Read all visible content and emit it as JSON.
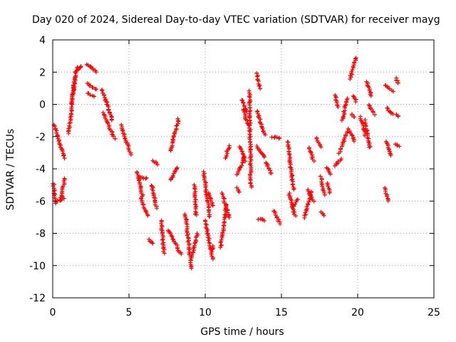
{
  "chart_data": {
    "type": "scatter",
    "title": "Day 020 of 2024, Sidereal Day-to-day VTEC variation (SDTVAR) for receiver mayg",
    "xlabel": "GPS time / hours",
    "ylabel": "SDTVAR / TECUs",
    "xlim": [
      0,
      25
    ],
    "ylim": [
      -12,
      4
    ],
    "xticks": [
      0,
      5,
      10,
      15,
      20,
      25
    ],
    "yticks": [
      4,
      2,
      0,
      -2,
      -4,
      -6,
      -8,
      -10,
      -12
    ],
    "grid": true,
    "marker": "+",
    "color": "#ff0000",
    "segments": [
      {
        "x0": 0.05,
        "x1": 0.15,
        "y0": -4.9,
        "y1": -6.0
      },
      {
        "x0": 0.15,
        "x1": 0.7,
        "y0": -6.1,
        "y1": -5.8
      },
      {
        "x0": 0.5,
        "x1": 0.8,
        "y0": -6.0,
        "y1": -4.6
      },
      {
        "x0": 0.1,
        "x1": 0.75,
        "y0": -1.3,
        "y1": -3.3
      },
      {
        "x0": 1.05,
        "x1": 1.45,
        "y0": -1.8,
        "y1": 1.7
      },
      {
        "x0": 1.2,
        "x1": 1.6,
        "y0": 0.0,
        "y1": 2.3
      },
      {
        "x0": 1.5,
        "x1": 1.9,
        "y0": 2.0,
        "y1": 2.4
      },
      {
        "x0": 2.25,
        "x1": 2.85,
        "y0": 2.5,
        "y1": 2.0
      },
      {
        "x0": 2.25,
        "x1": 2.85,
        "y0": 1.3,
        "y1": 0.9
      },
      {
        "x0": 2.3,
        "x1": 2.7,
        "y0": 0.7,
        "y1": 0.5
      },
      {
        "x0": 3.25,
        "x1": 3.9,
        "y0": 0.9,
        "y1": -1.0
      },
      {
        "x0": 3.3,
        "x1": 4.05,
        "y0": -0.5,
        "y1": -2.1
      },
      {
        "x0": 4.5,
        "x1": 5.1,
        "y0": -1.3,
        "y1": -3.1
      },
      {
        "x0": 5.5,
        "x1": 5.9,
        "y0": -4.2,
        "y1": -5.7
      },
      {
        "x0": 5.7,
        "x1": 6.2,
        "y0": -4.5,
        "y1": -4.6
      },
      {
        "x0": 5.8,
        "x1": 6.2,
        "y0": -5.8,
        "y1": -6.9
      },
      {
        "x0": 6.3,
        "x1": 6.6,
        "y0": -8.4,
        "y1": -8.6
      },
      {
        "x0": 6.5,
        "x1": 6.8,
        "y0": -5.0,
        "y1": -6.4
      },
      {
        "x0": 6.6,
        "x1": 6.9,
        "y0": -3.5,
        "y1": -3.7
      },
      {
        "x0": 7.1,
        "x1": 7.3,
        "y0": -7.2,
        "y1": -9.2
      },
      {
        "x0": 7.7,
        "x1": 8.25,
        "y0": -2.9,
        "y1": -0.9
      },
      {
        "x0": 7.7,
        "x1": 8.2,
        "y0": -4.7,
        "y1": -3.9
      },
      {
        "x0": 7.6,
        "x1": 8.4,
        "y0": -7.8,
        "y1": -9.3
      },
      {
        "x0": 8.7,
        "x1": 9.1,
        "y0": -6.8,
        "y1": -10.2
      },
      {
        "x0": 9.1,
        "x1": 9.5,
        "y0": -9.5,
        "y1": -8.0
      },
      {
        "x0": 9.3,
        "x1": 9.4,
        "y0": -5.0,
        "y1": -6.9
      },
      {
        "x0": 9.9,
        "x1": 10.3,
        "y0": -4.2,
        "y1": -7.0
      },
      {
        "x0": 10.0,
        "x1": 10.5,
        "y0": -7.2,
        "y1": -9.6
      },
      {
        "x0": 10.2,
        "x1": 10.5,
        "y0": -5.5,
        "y1": -6.3
      },
      {
        "x0": 10.5,
        "x1": 10.5,
        "y0": -8.8,
        "y1": -9.0
      },
      {
        "x0": 11.0,
        "x1": 11.4,
        "y0": -8.9,
        "y1": -6.2
      },
      {
        "x0": 11.1,
        "x1": 11.6,
        "y0": -5.5,
        "y1": -7.0
      },
      {
        "x0": 11.3,
        "x1": 11.6,
        "y0": -3.3,
        "y1": -2.6
      },
      {
        "x0": 12.1,
        "x1": 12.2,
        "y0": -5.2,
        "y1": -5.4
      },
      {
        "x0": 12.1,
        "x1": 12.6,
        "y0": -4.4,
        "y1": -3.2
      },
      {
        "x0": 12.3,
        "x1": 12.6,
        "y0": -2.6,
        "y1": -3.5
      },
      {
        "x0": 12.4,
        "x1": 12.7,
        "y0": 0.3,
        "y1": -0.4
      },
      {
        "x0": 12.5,
        "x1": 12.8,
        "y0": -0.3,
        "y1": -1.3
      },
      {
        "x0": 12.9,
        "x1": 13.0,
        "y0": 0.8,
        "y1": -5.1
      },
      {
        "x0": 13.4,
        "x1": 13.6,
        "y0": 1.9,
        "y1": 1.0
      },
      {
        "x0": 13.4,
        "x1": 13.9,
        "y0": -0.4,
        "y1": -1.9
      },
      {
        "x0": 13.4,
        "x1": 13.9,
        "y0": -2.6,
        "y1": -3.3
      },
      {
        "x0": 13.5,
        "x1": 13.9,
        "y0": -7.1,
        "y1": -7.2
      },
      {
        "x0": 14.0,
        "x1": 14.3,
        "y0": -3.6,
        "y1": -4.3
      },
      {
        "x0": 14.4,
        "x1": 14.9,
        "y0": -2.0,
        "y1": -2.1
      },
      {
        "x0": 14.5,
        "x1": 14.9,
        "y0": -6.6,
        "y1": -7.4
      },
      {
        "x0": 15.4,
        "x1": 15.8,
        "y0": -2.3,
        "y1": -5.3
      },
      {
        "x0": 15.5,
        "x1": 15.9,
        "y0": -5.5,
        "y1": -6.9
      },
      {
        "x0": 15.7,
        "x1": 16.1,
        "y0": -6.4,
        "y1": -5.9
      },
      {
        "x0": 16.5,
        "x1": 17.0,
        "y0": -7.0,
        "y1": -5.4
      },
      {
        "x0": 16.7,
        "x1": 17.1,
        "y0": -5.3,
        "y1": -6.0
      },
      {
        "x0": 16.8,
        "x1": 17.1,
        "y0": -2.7,
        "y1": -3.5
      },
      {
        "x0": 17.3,
        "x1": 17.6,
        "y0": -2.1,
        "y1": -2.6
      },
      {
        "x0": 17.6,
        "x1": 17.8,
        "y0": -4.5,
        "y1": -5.6
      },
      {
        "x0": 17.6,
        "x1": 17.8,
        "y0": -6.7,
        "y1": -6.9
      },
      {
        "x0": 18.0,
        "x1": 18.2,
        "y0": -4.9,
        "y1": -5.5
      },
      {
        "x0": 18.0,
        "x1": 18.2,
        "y0": -3.9,
        "y1": -4.3
      },
      {
        "x0": 18.5,
        "x1": 18.9,
        "y0": -3.8,
        "y1": -3.4
      },
      {
        "x0": 18.5,
        "x1": 18.7,
        "y0": 0.6,
        "y1": -0.2
      },
      {
        "x0": 18.8,
        "x1": 19.3,
        "y0": -3.0,
        "y1": -1.7
      },
      {
        "x0": 19.0,
        "x1": 19.3,
        "y0": -1.0,
        "y1": 0.4
      },
      {
        "x0": 19.4,
        "x1": 19.8,
        "y0": -1.5,
        "y1": -2.3
      },
      {
        "x0": 19.5,
        "x1": 19.9,
        "y0": 1.6,
        "y1": 2.9
      },
      {
        "x0": 19.6,
        "x1": 19.8,
        "y0": -0.6,
        "y1": -0.8
      },
      {
        "x0": 19.7,
        "x1": 19.9,
        "y0": 0.5,
        "y1": 0.2
      },
      {
        "x0": 20.2,
        "x1": 20.5,
        "y0": -0.8,
        "y1": -1.9
      },
      {
        "x0": 20.5,
        "x1": 20.8,
        "y0": -1.0,
        "y1": -2.7
      },
      {
        "x0": 20.6,
        "x1": 20.9,
        "y0": 1.4,
        "y1": 0.5
      },
      {
        "x0": 20.7,
        "x1": 21.1,
        "y0": 0.0,
        "y1": -0.6
      },
      {
        "x0": 21.8,
        "x1": 22.0,
        "y0": -5.2,
        "y1": -6.0
      },
      {
        "x0": 21.8,
        "x1": 22.3,
        "y0": 1.2,
        "y1": 0.8
      },
      {
        "x0": 21.9,
        "x1": 22.3,
        "y0": -0.2,
        "y1": -0.6
      },
      {
        "x0": 21.9,
        "x1": 22.2,
        "y0": -2.3,
        "y1": -3.2
      },
      {
        "x0": 22.5,
        "x1": 22.7,
        "y0": 1.6,
        "y1": 1.3
      },
      {
        "x0": 22.5,
        "x1": 22.7,
        "y0": -0.6,
        "y1": -0.7
      },
      {
        "x0": 22.5,
        "x1": 22.7,
        "y0": -2.5,
        "y1": -2.6
      }
    ]
  }
}
